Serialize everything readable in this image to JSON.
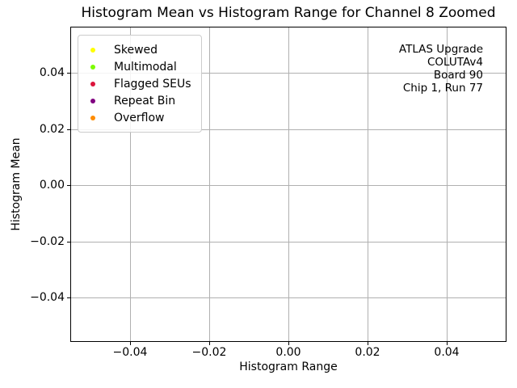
{
  "chart_data": {
    "type": "scatter",
    "title": "Histogram Mean vs Histogram Range for Channel 8 Zoomed",
    "xlabel": "Histogram Range",
    "ylabel": "Histogram Mean",
    "xlim": [
      -0.055,
      0.055
    ],
    "ylim": [
      -0.0557,
      0.0565
    ],
    "xticks": [
      -0.04,
      -0.02,
      0.0,
      0.02,
      0.04
    ],
    "yticks": [
      -0.04,
      -0.02,
      0.0,
      0.02,
      0.04
    ],
    "xtick_labels": [
      "−0.04",
      "−0.02",
      "0.00",
      "0.02",
      "0.04"
    ],
    "ytick_labels": [
      "−0.04",
      "−0.02",
      "0.00",
      "0.02",
      "0.04"
    ],
    "grid": true,
    "grid_color": "#b0b0b0",
    "legend_position": "upper left",
    "series": [
      {
        "name": "Skewed",
        "color": "#ffff00",
        "x": [],
        "y": []
      },
      {
        "name": "Multimodal",
        "color": "#7cfc00",
        "x": [],
        "y": []
      },
      {
        "name": "Flagged SEUs",
        "color": "#dc143c",
        "x": [],
        "y": []
      },
      {
        "name": "Repeat Bin",
        "color": "#800080",
        "x": [],
        "y": []
      },
      {
        "name": "Overflow",
        "color": "#ff8c00",
        "x": [],
        "y": []
      }
    ],
    "annotation": {
      "align": "right",
      "lines": [
        "ATLAS Upgrade",
        "COLUTAv4",
        "Board 90",
        "Chip 1, Run 77"
      ]
    }
  }
}
